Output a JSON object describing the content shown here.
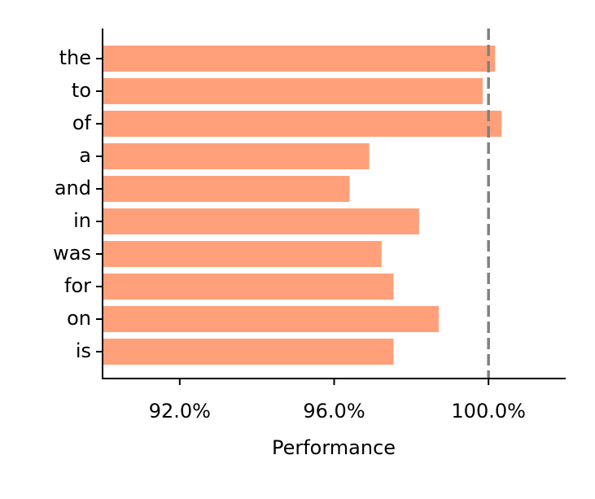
{
  "chart_data": {
    "type": "barh",
    "xlabel": "Performance",
    "categories": [
      "the",
      "to",
      "of",
      "a",
      "and",
      "in",
      "was",
      "for",
      "on",
      "is"
    ],
    "values": [
      100.17,
      99.85,
      100.34,
      96.91,
      96.4,
      98.2,
      97.23,
      97.54,
      98.71,
      97.54
    ],
    "color": "#ffa07a",
    "xlim": [
      90,
      102
    ],
    "xticks": [
      {
        "value": 92,
        "label": "92.0%"
      },
      {
        "value": 96,
        "label": "96.0%"
      },
      {
        "value": 100,
        "label": "100.0%"
      }
    ],
    "reference_line": 100
  }
}
